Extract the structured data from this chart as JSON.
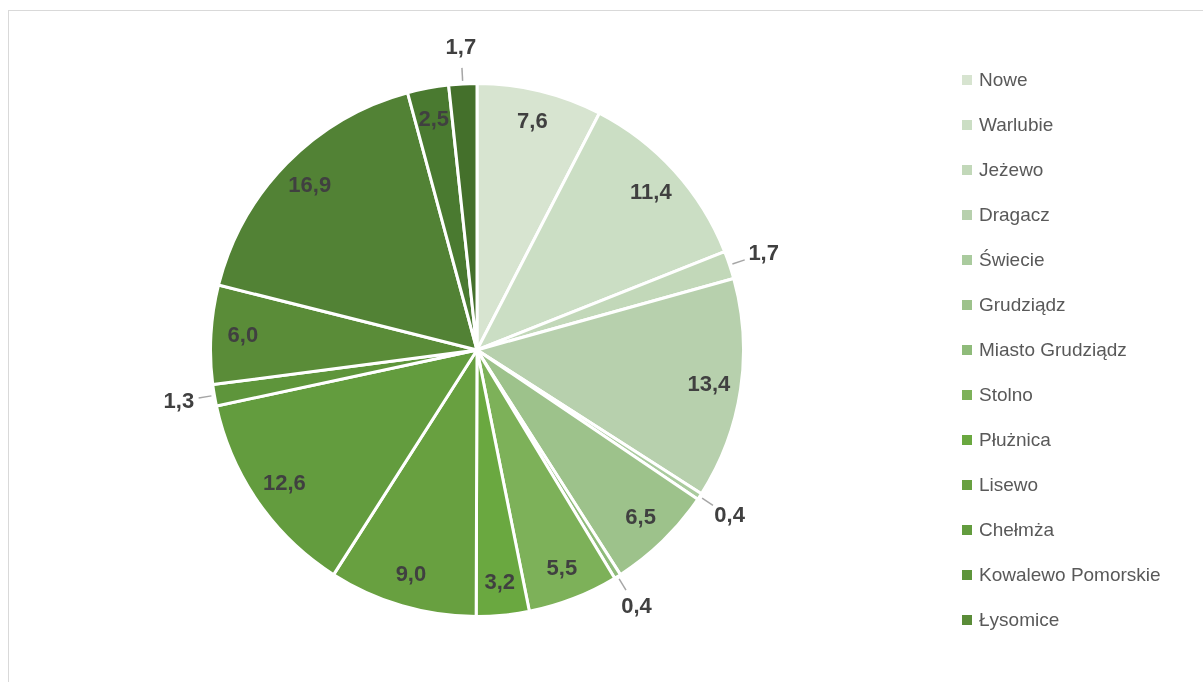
{
  "chart_data": {
    "type": "pie",
    "categories": [
      "Nowe",
      "Warlubie",
      "Jeżewo",
      "Dragacz",
      "Świecie",
      "Grudziądz",
      "Miasto Grudziądz",
      "Stolno",
      "Płużnica",
      "Lisewo",
      "Chełmża",
      "Kowalewo Pomorskie",
      "Łysomice",
      null,
      null,
      null
    ],
    "values": [
      7.6,
      11.4,
      1.7,
      13.4,
      0.4,
      6.5,
      0.4,
      5.5,
      3.2,
      9.0,
      12.6,
      1.3,
      6.0,
      16.9,
      2.5,
      1.7
    ],
    "colors": [
      "#d7e4d0",
      "#cbdec4",
      "#c2d8b9",
      "#b7d0ad",
      "#aacb9e",
      "#9dc28b",
      "#8fbb7a",
      "#7db159",
      "#6aa840",
      "#68a040",
      "#639c3e",
      "#5e953b",
      "#5a8c38",
      "#528235",
      "#4a7a30",
      "#44702b"
    ],
    "value_labels": [
      "7,6",
      "11,4",
      "1,7",
      "13,4",
      "0,4",
      "6,5",
      "0,4",
      "5,5",
      "3,2",
      "9,0",
      "12,6",
      "1,3",
      "6,0",
      "16,9",
      "2,5",
      "1,7"
    ],
    "legend": "right"
  }
}
